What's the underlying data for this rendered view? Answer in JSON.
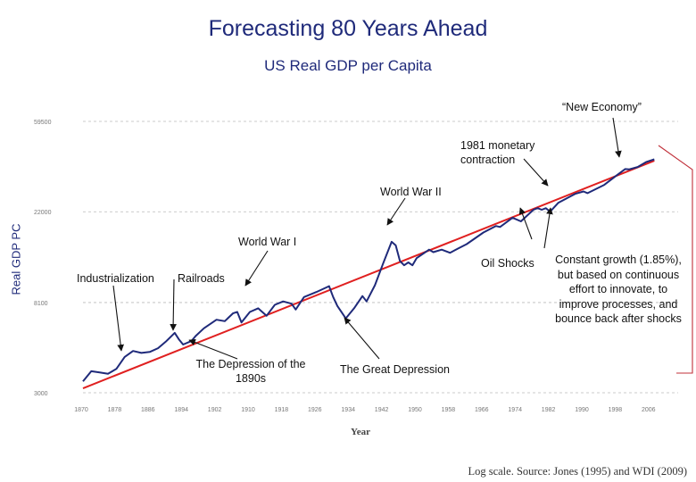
{
  "title": "Forecasting 80 Years Ahead",
  "subtitle": "US Real GDP per Capita",
  "source": "Log scale. Source: Jones (1995) and WDI (2009)",
  "box_note": "Constant growth (1.85%), but based on continuous effort to innovate, to improve processes, and bounce back after shocks",
  "annotations": {
    "new_economy": "“New Economy”",
    "monetary": "1981 monetary contraction",
    "ww2": "World War II",
    "ww1": "World War I",
    "oil": "Oil Shocks",
    "industrialization": "Industrialization",
    "railroads": "Railroads",
    "depression_1890s": "The Depression of the 1890s",
    "great_depression": "The Great Depression"
  },
  "colors": {
    "title": "#1f2a7a",
    "series": "#1f2a7a",
    "trend": "#e02020",
    "box": "#c0303a",
    "grid": "#bbbbbb"
  },
  "chart_data": {
    "type": "line",
    "title": "US Real GDP per Capita",
    "xlabel": "Year",
    "ylabel": "Real GDP PC",
    "yscale": "log",
    "xlim": [
      1870,
      2008
    ],
    "ylim": [
      3000,
      59500
    ],
    "x_ticks": [
      "1870",
      "1878",
      "1886",
      "1894",
      "1902",
      "1910",
      "1918",
      "1926",
      "1934",
      "1942",
      "1950",
      "1958",
      "1966",
      "1974",
      "1982",
      "1990",
      "1998",
      "2006"
    ],
    "y_ticks": [
      "59500",
      "22000",
      "8100",
      "3000"
    ],
    "grid": true,
    "series": [
      {
        "values": [
          [
            1870,
            3400
          ],
          [
            1872,
            3800
          ],
          [
            1874,
            3750
          ],
          [
            1876,
            3700
          ],
          [
            1878,
            3900
          ],
          [
            1880,
            4450
          ],
          [
            1882,
            4750
          ],
          [
            1884,
            4650
          ],
          [
            1886,
            4700
          ],
          [
            1888,
            4900
          ],
          [
            1890,
            5300
          ],
          [
            1892,
            5800
          ],
          [
            1893,
            5400
          ],
          [
            1894,
            5100
          ],
          [
            1896,
            5300
          ],
          [
            1897,
            5600
          ],
          [
            1899,
            6100
          ],
          [
            1902,
            6700
          ],
          [
            1904,
            6600
          ],
          [
            1906,
            7200
          ],
          [
            1907,
            7300
          ],
          [
            1908,
            6500
          ],
          [
            1910,
            7300
          ],
          [
            1912,
            7600
          ],
          [
            1914,
            7000
          ],
          [
            1916,
            7900
          ],
          [
            1918,
            8200
          ],
          [
            1920,
            8000
          ],
          [
            1921,
            7500
          ],
          [
            1923,
            8600
          ],
          [
            1926,
            9100
          ],
          [
            1929,
            9700
          ],
          [
            1930,
            8600
          ],
          [
            1931,
            7800
          ],
          [
            1933,
            6800
          ],
          [
            1935,
            7600
          ],
          [
            1937,
            8700
          ],
          [
            1938,
            8200
          ],
          [
            1940,
            9800
          ],
          [
            1942,
            12500
          ],
          [
            1944,
            15800
          ],
          [
            1945,
            15200
          ],
          [
            1946,
            12800
          ],
          [
            1947,
            12200
          ],
          [
            1948,
            12600
          ],
          [
            1949,
            12200
          ],
          [
            1950,
            13200
          ],
          [
            1953,
            14500
          ],
          [
            1954,
            14100
          ],
          [
            1956,
            14500
          ],
          [
            1958,
            14000
          ],
          [
            1960,
            14700
          ],
          [
            1962,
            15400
          ],
          [
            1966,
            17500
          ],
          [
            1969,
            18800
          ],
          [
            1970,
            18600
          ],
          [
            1973,
            20600
          ],
          [
            1975,
            19800
          ],
          [
            1978,
            22500
          ],
          [
            1979,
            22900
          ],
          [
            1980,
            22500
          ],
          [
            1981,
            22900
          ],
          [
            1982,
            22000
          ],
          [
            1984,
            24300
          ],
          [
            1988,
            26800
          ],
          [
            1990,
            27500
          ],
          [
            1991,
            27000
          ],
          [
            1995,
            29600
          ],
          [
            1998,
            32900
          ],
          [
            2000,
            35200
          ],
          [
            2001,
            35100
          ],
          [
            2003,
            36000
          ],
          [
            2005,
            38000
          ],
          [
            2007,
            39200
          ]
        ]
      },
      {
        "values": [
          [
            1870,
            3150
          ],
          [
            2007,
            38600
          ]
        ]
      }
    ]
  }
}
